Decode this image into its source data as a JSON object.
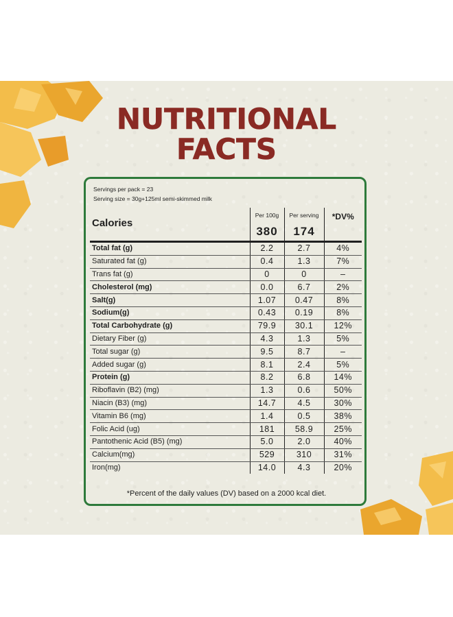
{
  "title": {
    "line1": "NUTRITIONAL",
    "line2": "FACTS"
  },
  "servings": {
    "per_pack": "Servings per pack = 23",
    "size": "Serving size = 30g+125ml semi-skimmed milk"
  },
  "header": {
    "calories_label": "Calories",
    "per100_label": "Per 100g",
    "per_serving_label": "Per serving",
    "dv_label": "*DV%",
    "calories_per100": "380",
    "calories_per_serving": "174"
  },
  "rows": [
    {
      "name": "Total fat (g)",
      "bold": true,
      "per100": "2.2",
      "serving": "2.7",
      "dv": "4%"
    },
    {
      "name": "Saturated fat (g)",
      "bold": false,
      "per100": "0.4",
      "serving": "1.3",
      "dv": "7%"
    },
    {
      "name": "Trans fat (g)",
      "bold": false,
      "per100": "0",
      "serving": "0",
      "dv": "–"
    },
    {
      "name": "Cholesterol (mg)",
      "bold": true,
      "per100": "0.0",
      "serving": "6.7",
      "dv": "2%"
    },
    {
      "name": "Salt(g)",
      "bold": true,
      "per100": "1.07",
      "serving": "0.47",
      "dv": "8%"
    },
    {
      "name": "Sodium(g)",
      "bold": true,
      "per100": "0.43",
      "serving": "0.19",
      "dv": "8%"
    },
    {
      "name": "Total Carbohydrate (g)",
      "bold": true,
      "per100": "79.9",
      "serving": "30.1",
      "dv": "12%"
    },
    {
      "name": "Dietary Fiber (g)",
      "bold": false,
      "per100": "4.3",
      "serving": "1.3",
      "dv": "5%"
    },
    {
      "name": "Total sugar (g)",
      "bold": false,
      "per100": "9.5",
      "serving": "8.7",
      "dv": "–"
    },
    {
      "name": "Added sugar (g)",
      "bold": false,
      "per100": "8.1",
      "serving": "2.4",
      "dv": "5%"
    },
    {
      "name": "Protein (g)",
      "bold": true,
      "per100": "8.2",
      "serving": "6.8",
      "dv": "14%"
    },
    {
      "name": "Riboflavin (B2) (mg)",
      "bold": false,
      "per100": "1.3",
      "serving": "0.6",
      "dv": "50%"
    },
    {
      "name": "Niacin (B3) (mg)",
      "bold": false,
      "per100": "14.7",
      "serving": "4.5",
      "dv": "30%"
    },
    {
      "name": "Vitamin B6 (mg)",
      "bold": false,
      "per100": "1.4",
      "serving": "0.5",
      "dv": "38%"
    },
    {
      "name": "Folic Acid (ug)",
      "bold": false,
      "per100": "181",
      "serving": "58.9",
      "dv": "25%"
    },
    {
      "name": "Pantothenic Acid (B5) (mg)",
      "bold": false,
      "per100": "5.0",
      "serving": "2.0",
      "dv": "40%"
    },
    {
      "name": "Calcium(mg)",
      "bold": false,
      "per100": "529",
      "serving": "310",
      "dv": "31%"
    },
    {
      "name": "Iron(mg)",
      "bold": false,
      "per100": "14.0",
      "serving": "4.3",
      "dv": "20%"
    }
  ],
  "footnote": "*Percent of the daily values (DV) based on a 2000 kcal diet.",
  "colors": {
    "title": "#8a2a24",
    "border": "#2e7a3b",
    "background": "#ecebe1",
    "flake": "#f2b53c"
  }
}
